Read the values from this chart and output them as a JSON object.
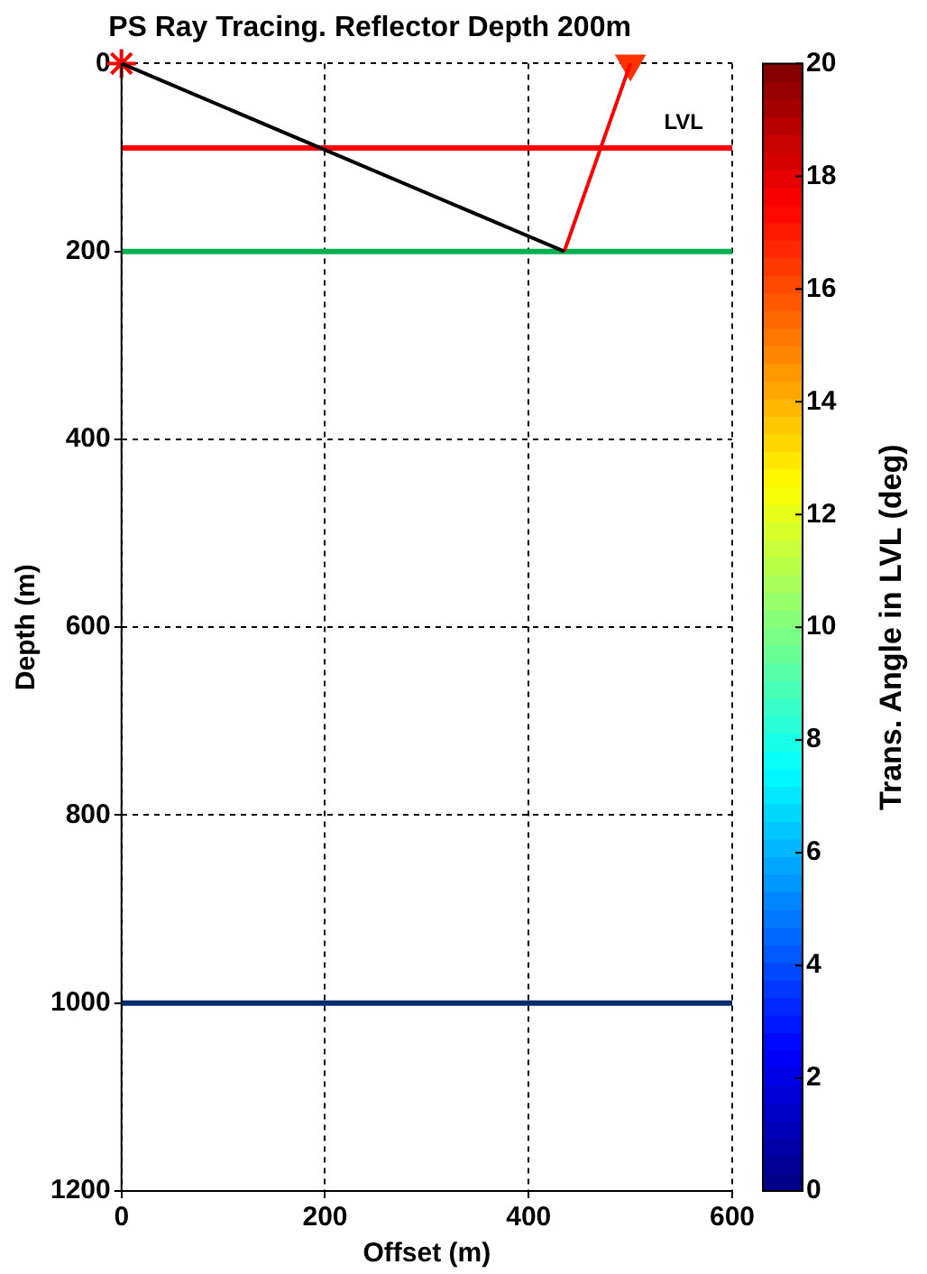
{
  "chart_data": {
    "type": "line",
    "title": "PS Ray Tracing. Reflector Depth 200m",
    "xlabel": "Offset (m)",
    "ylabel": "Depth (m)",
    "clabel": "Trans. Angle in LVL (deg)",
    "xlim": [
      0,
      600
    ],
    "xticks": [
      0,
      200,
      400,
      600
    ],
    "ylim": [
      1200,
      0
    ],
    "yticks": [
      0,
      200,
      400,
      600,
      800,
      1000,
      1200
    ],
    "clim": [
      0,
      20
    ],
    "cticks": [
      0,
      2,
      4,
      6,
      8,
      10,
      12,
      14,
      16,
      18,
      20
    ],
    "grid": true,
    "legend": false,
    "series": [
      {
        "color": "#000000",
        "x": [
          0,
          435
        ],
        "values": [
          0,
          200
        ],
        "marker": "none"
      },
      {
        "color": "#ff0000",
        "x": [
          435,
          500
        ],
        "values": [
          200,
          0
        ],
        "marker": "none"
      },
      {
        "type": "scatter",
        "color": "#ff0000",
        "x": [
          0
        ],
        "values": [
          0
        ],
        "marker": "cross"
      },
      {
        "type": "scatter",
        "color": "#ff3300",
        "x": [
          500
        ],
        "values": [
          0
        ],
        "marker": "triangle"
      }
    ],
    "ref_lines": [
      {
        "axis": "y",
        "value": 90,
        "label": "LVL",
        "color": "#ff0000"
      },
      {
        "axis": "y",
        "value": 200,
        "label": null,
        "color": "#00b050"
      },
      {
        "axis": "y",
        "value": 1000,
        "label": null,
        "color": "#0a2a6e"
      }
    ]
  }
}
